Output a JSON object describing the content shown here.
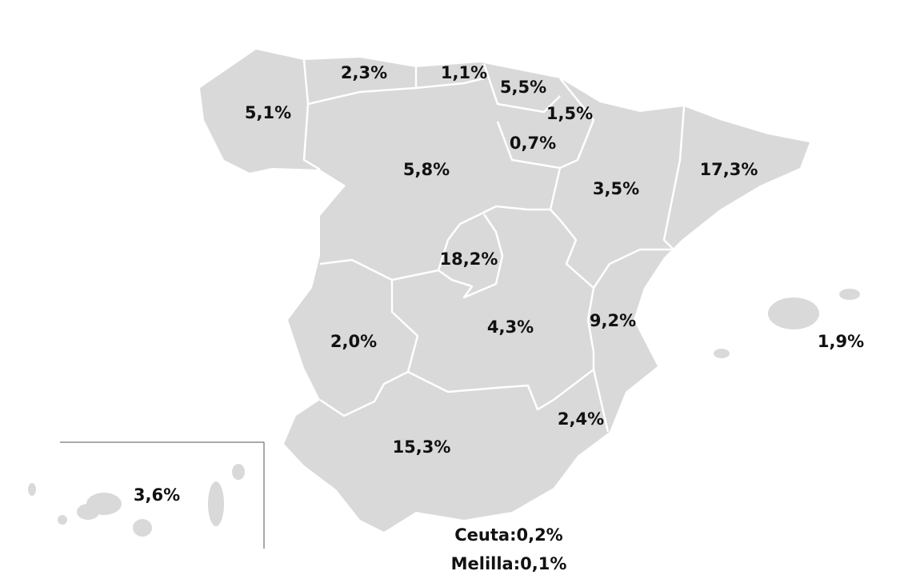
{
  "regions": [
    {
      "label": "5,1%"
    },
    {
      "label": "2,3%"
    },
    {
      "label": "1,1%"
    },
    {
      "label": "5,5%"
    },
    {
      "label": "1,5%"
    },
    {
      "label": "0,7%"
    },
    {
      "label": "5,8%"
    },
    {
      "label": "3,5%"
    },
    {
      "label": "17,3%"
    },
    {
      "label": "18,2%"
    },
    {
      "label": "4,3%"
    },
    {
      "label": "9,2%"
    },
    {
      "label": "2,0%"
    },
    {
      "label": "1,9%"
    },
    {
      "label": "2,4%"
    },
    {
      "label": "15,3%"
    },
    {
      "label": "3,6%"
    }
  ],
  "notes": [
    "Ceuta:0,2%",
    "Melilla:0,1%"
  ]
}
